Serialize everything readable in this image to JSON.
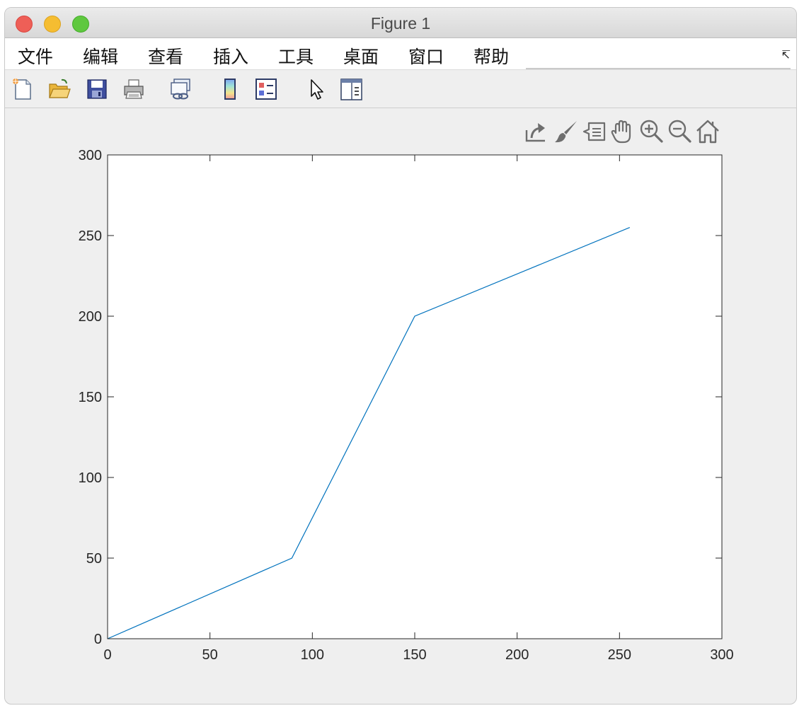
{
  "window": {
    "title": "Figure 1"
  },
  "menu": {
    "items": [
      "文件",
      "编辑",
      "查看",
      "插入",
      "工具",
      "桌面",
      "窗口",
      "帮助"
    ],
    "overflow_icon": "dock-arrow-icon"
  },
  "toolbar": {
    "buttons": [
      "new-figure-icon",
      "open-file-icon",
      "save-icon",
      "print-icon",
      "link-plot-icon",
      "colorbar-icon",
      "legend-icon",
      "edit-plot-pointer-icon",
      "property-inspector-icon"
    ]
  },
  "axes_toolbar": {
    "buttons": [
      "export-icon",
      "brush-icon",
      "data-tips-icon",
      "pan-hand-icon",
      "zoom-in-icon",
      "zoom-out-icon",
      "restore-view-home-icon"
    ]
  },
  "colors": {
    "line": "#0072bd",
    "axes": "#262626",
    "figure_bg": "#efefef",
    "axes_bg": "#ffffff"
  },
  "chart_data": {
    "type": "line",
    "title": "",
    "xlabel": "",
    "ylabel": "",
    "xlim": [
      0,
      300
    ],
    "ylim": [
      0,
      300
    ],
    "xticks": [
      0,
      50,
      100,
      150,
      200,
      250,
      300
    ],
    "yticks": [
      0,
      50,
      100,
      150,
      200,
      250,
      300
    ],
    "grid": false,
    "series": [
      {
        "x": [
          0,
          90,
          150,
          255
        ],
        "y": [
          0,
          50,
          200,
          255
        ]
      }
    ]
  }
}
